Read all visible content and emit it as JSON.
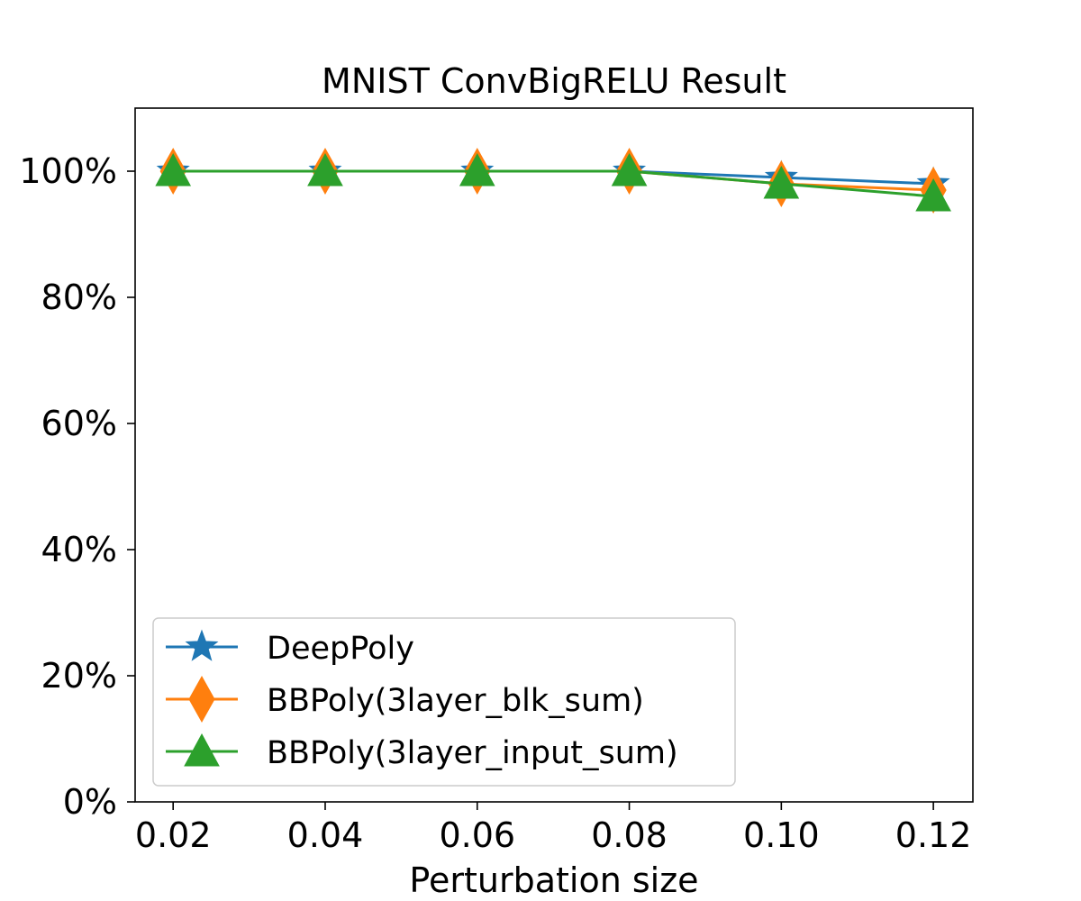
{
  "chart_data": {
    "type": "line",
    "title": "MNIST ConvBigRELU Result",
    "xlabel": "Perturbation size",
    "ylabel": "",
    "x": [
      0.02,
      0.04,
      0.06,
      0.08,
      0.1,
      0.12
    ],
    "x_tick_labels": [
      "0.02",
      "0.04",
      "0.06",
      "0.08",
      "0.10",
      "0.12"
    ],
    "xlim": [
      0.015,
      0.1252
    ],
    "ylim": [
      0,
      110
    ],
    "y_ticks": [
      0,
      20,
      40,
      60,
      80,
      100
    ],
    "y_tick_labels": [
      "0%",
      "20%",
      "40%",
      "60%",
      "80%",
      "100%"
    ],
    "grid": false,
    "legend_position": "lower-left",
    "series": [
      {
        "name": "DeepPoly",
        "values": [
          100,
          100,
          100,
          100,
          99,
          98
        ],
        "color": "#1f77b4",
        "marker": "star"
      },
      {
        "name": "BBPoly(3layer_blk_sum)",
        "values": [
          100,
          100,
          100,
          100,
          98,
          97
        ],
        "color": "#ff7f0e",
        "marker": "diamond"
      },
      {
        "name": "BBPoly(3layer_input_sum)",
        "values": [
          100,
          100,
          100,
          100,
          98,
          96
        ],
        "color": "#2ca02c",
        "marker": "triangle"
      }
    ]
  }
}
